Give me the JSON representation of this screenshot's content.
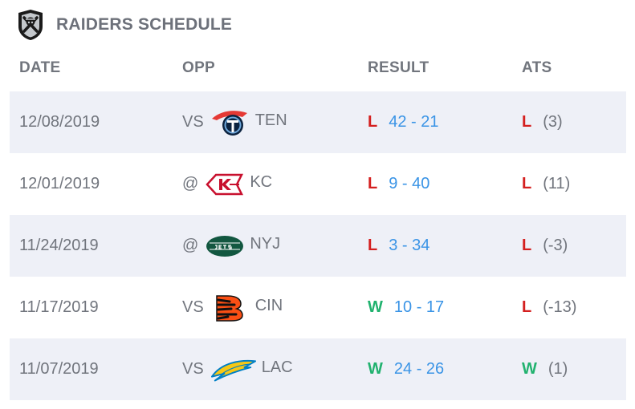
{
  "header": {
    "title": "RAIDERS SCHEDULE",
    "logo_icon": "raiders-shield-icon"
  },
  "columns": {
    "date": "DATE",
    "opp": "OPP",
    "result": "RESULT",
    "ats": "ATS"
  },
  "colors": {
    "loss": "#d41f1f",
    "win": "#21b26f",
    "score": "#3a94e6",
    "row_shade": "#eef0f7"
  },
  "games": [
    {
      "date": "12/08/2019",
      "prefix": "VS",
      "opponent": "TEN",
      "opp_icon": "titans-logo-icon",
      "wl": "L",
      "score": "42 - 21",
      "ats_wl": "L",
      "ats_line": "(3)"
    },
    {
      "date": "12/01/2019",
      "prefix": "@",
      "opponent": "KC",
      "opp_icon": "chiefs-logo-icon",
      "wl": "L",
      "score": "9 - 40",
      "ats_wl": "L",
      "ats_line": "(11)"
    },
    {
      "date": "11/24/2019",
      "prefix": "@",
      "opponent": "NYJ",
      "opp_icon": "jets-logo-icon",
      "wl": "L",
      "score": "3 - 34",
      "ats_wl": "L",
      "ats_line": "(-3)"
    },
    {
      "date": "11/17/2019",
      "prefix": "VS",
      "opponent": "CIN",
      "opp_icon": "bengals-logo-icon",
      "wl": "W",
      "score": "10 - 17",
      "ats_wl": "L",
      "ats_line": "(-13)"
    },
    {
      "date": "11/07/2019",
      "prefix": "VS",
      "opponent": "LAC",
      "opp_icon": "chargers-logo-icon",
      "wl": "W",
      "score": "24 - 26",
      "ats_wl": "W",
      "ats_line": "(1)"
    }
  ]
}
